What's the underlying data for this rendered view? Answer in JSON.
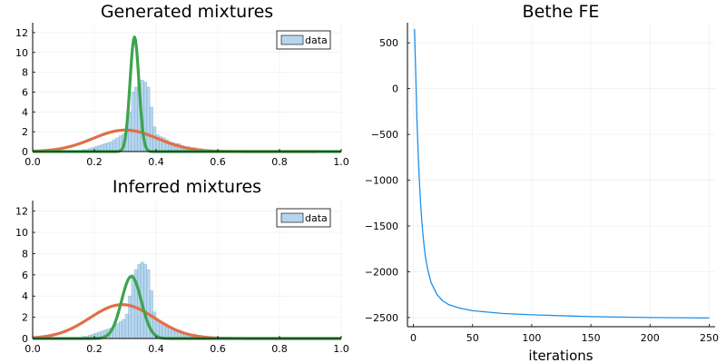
{
  "chart_data": [
    {
      "type": "histogram",
      "title": "Generated mixtures",
      "xlim": [
        0.0,
        1.0
      ],
      "ylim": [
        0,
        13
      ],
      "xticks": [
        "0.0",
        "0.2",
        "0.4",
        "0.6",
        "0.8",
        "1.0"
      ],
      "yticks": [
        "0",
        "2",
        "4",
        "6",
        "8",
        "10",
        "12"
      ],
      "legend": {
        "label": "data",
        "position": "top-right"
      },
      "grid": true,
      "histogram": {
        "name": "data",
        "color": "#9ec8ea",
        "bin_width": 0.01,
        "bin_start": 0.14,
        "values": [
          0.1,
          0.1,
          0.2,
          0.2,
          0.3,
          0.4,
          0.5,
          0.6,
          0.7,
          0.8,
          0.9,
          1.0,
          1.2,
          1.4,
          1.6,
          1.8,
          2.3,
          4.0,
          6.0,
          6.5,
          7.0,
          7.2,
          7.0,
          6.5,
          4.5,
          2.5,
          1.7,
          1.5,
          1.4,
          1.2,
          1.0,
          0.9,
          0.8,
          0.8,
          0.6,
          0.5,
          0.5,
          0.4,
          0.4,
          0.3,
          0.3,
          0.2,
          0.2,
          0.1,
          0.1,
          0.1
        ]
      },
      "curves": [
        {
          "color": "#e26f46",
          "weight": 0.57,
          "mean": 0.3,
          "sd": 0.105,
          "x_end": 0.92
        },
        {
          "color": "#3da44d",
          "weight": 0.42,
          "mean": 0.33,
          "sd": 0.0145
        }
      ]
    },
    {
      "type": "histogram",
      "title": "Inferred mixtures",
      "xlim": [
        0.0,
        1.0
      ],
      "ylim": [
        0,
        13
      ],
      "xticks": [
        "0.0",
        "0.2",
        "0.4",
        "0.6",
        "0.8",
        "1.0"
      ],
      "yticks": [
        "0",
        "2",
        "4",
        "6",
        "8",
        "10",
        "12"
      ],
      "legend": {
        "label": "data",
        "position": "top-right"
      },
      "grid": true,
      "histogram": {
        "name": "data",
        "color": "#9ec8ea",
        "bin_width": 0.01,
        "bin_start": 0.14,
        "values": [
          0.1,
          0.1,
          0.2,
          0.2,
          0.3,
          0.4,
          0.5,
          0.6,
          0.7,
          0.8,
          0.9,
          1.0,
          1.2,
          1.4,
          1.6,
          1.8,
          2.3,
          4.0,
          6.0,
          6.5,
          7.0,
          7.2,
          7.0,
          6.5,
          4.5,
          2.5,
          1.7,
          1.5,
          1.4,
          1.2,
          1.0,
          0.9,
          0.8,
          0.8,
          0.6,
          0.5,
          0.5,
          0.4,
          0.4,
          0.3,
          0.3,
          0.2,
          0.2,
          0.1,
          0.1,
          0.1
        ]
      },
      "curves": [
        {
          "color": "#e26f46",
          "weight": 0.84,
          "mean": 0.29,
          "sd": 0.105
        },
        {
          "color": "#3da44d",
          "weight": 0.47,
          "mean": 0.32,
          "sd": 0.032
        }
      ]
    },
    {
      "type": "line",
      "title": "Bethe FE",
      "xlabel": "iterations",
      "xlim": [
        -5,
        255
      ],
      "ylim": [
        -2600,
        720
      ],
      "xticks": [
        0,
        50,
        100,
        150,
        200,
        250
      ],
      "yticks": [
        500,
        0,
        -500,
        -1000,
        -1500,
        -2000,
        -2500
      ],
      "ytick_labels": [
        "500",
        "0",
        "−500",
        "−1000",
        "−1500",
        "−2000",
        "−2500"
      ],
      "grid": true,
      "series": [
        {
          "color": "#1e90e8",
          "x": [
            1,
            2,
            3,
            4,
            5,
            6,
            7,
            8,
            9,
            10,
            12,
            15,
            20,
            25,
            30,
            40,
            50,
            75,
            100,
            150,
            200,
            250
          ],
          "y": [
            650,
            150,
            -340,
            -690,
            -990,
            -1230,
            -1420,
            -1580,
            -1710,
            -1820,
            -1970,
            -2120,
            -2250,
            -2320,
            -2360,
            -2400,
            -2425,
            -2455,
            -2470,
            -2490,
            -2500,
            -2505
          ]
        }
      ]
    }
  ]
}
